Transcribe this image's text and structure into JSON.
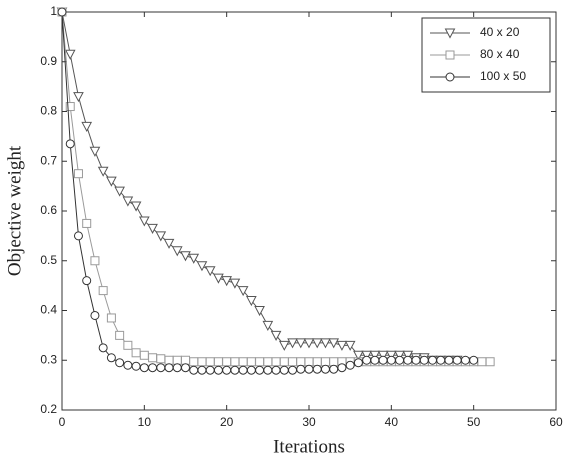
{
  "chart_data": {
    "type": "line",
    "xlabel": "Iterations",
    "ylabel": "Objective weight",
    "x": [
      0,
      1,
      2,
      3,
      4,
      5,
      6,
      7,
      8,
      9,
      10,
      11,
      12,
      13,
      14,
      15,
      16,
      17,
      18,
      19,
      20,
      21,
      22,
      23,
      24,
      25,
      26,
      27,
      28,
      29,
      30,
      31,
      32,
      33,
      34,
      35,
      36,
      37,
      38,
      39,
      40,
      41,
      42,
      43,
      44,
      45,
      46,
      47,
      48,
      49,
      50,
      51,
      52
    ],
    "xlim": [
      0,
      60
    ],
    "xticks": [
      0,
      10,
      20,
      30,
      40,
      50,
      60
    ],
    "ylim": [
      0.2,
      1
    ],
    "yticks": [
      0.2,
      0.3,
      0.4,
      0.5,
      0.6,
      0.7,
      0.8,
      0.9,
      1
    ],
    "legend": "upper right",
    "series": [
      {
        "name": "40 x 20",
        "color": "#555555",
        "marker": "triangle-down",
        "values": [
          1.0,
          0.915,
          0.83,
          0.77,
          0.72,
          0.68,
          0.66,
          0.64,
          0.62,
          0.61,
          0.58,
          0.565,
          0.55,
          0.535,
          0.52,
          0.51,
          0.505,
          0.49,
          0.48,
          0.465,
          0.46,
          0.455,
          0.44,
          0.42,
          0.4,
          0.37,
          0.35,
          0.33,
          0.335,
          0.335,
          0.335,
          0.335,
          0.335,
          0.335,
          0.33,
          0.33,
          0.31,
          0.31,
          0.31,
          0.31,
          0.31,
          0.31,
          0.31,
          0.305,
          0.305,
          0.3,
          0.3,
          0.3,
          0.3,
          null,
          null,
          null,
          null
        ]
      },
      {
        "name": "80 x 40",
        "color": "#9a9a9a",
        "marker": "square",
        "values": [
          1.0,
          0.81,
          0.675,
          0.575,
          0.5,
          0.44,
          0.385,
          0.35,
          0.33,
          0.315,
          0.31,
          0.305,
          0.303,
          0.3,
          0.3,
          0.3,
          0.297,
          0.297,
          0.297,
          0.297,
          0.297,
          0.297,
          0.297,
          0.297,
          0.297,
          0.297,
          0.297,
          0.297,
          0.297,
          0.297,
          0.297,
          0.297,
          0.297,
          0.297,
          0.297,
          0.297,
          0.297,
          0.297,
          0.297,
          0.297,
          0.297,
          0.297,
          0.297,
          0.297,
          0.297,
          0.297,
          0.297,
          0.297,
          0.297,
          0.297,
          0.297,
          0.297,
          0.297
        ]
      },
      {
        "name": "100 x 50",
        "color": "#333333",
        "marker": "circle",
        "values": [
          1.0,
          0.735,
          0.55,
          0.46,
          0.39,
          0.325,
          0.305,
          0.295,
          0.29,
          0.288,
          0.285,
          0.285,
          0.285,
          0.285,
          0.285,
          0.285,
          0.28,
          0.28,
          0.28,
          0.28,
          0.28,
          0.28,
          0.28,
          0.28,
          0.28,
          0.28,
          0.28,
          0.28,
          0.28,
          0.282,
          0.282,
          0.282,
          0.282,
          0.282,
          0.285,
          0.29,
          0.295,
          0.3,
          0.3,
          0.3,
          0.3,
          0.3,
          0.3,
          0.3,
          0.3,
          0.3,
          0.3,
          0.3,
          0.3,
          0.3,
          0.3,
          null,
          null
        ]
      }
    ]
  }
}
